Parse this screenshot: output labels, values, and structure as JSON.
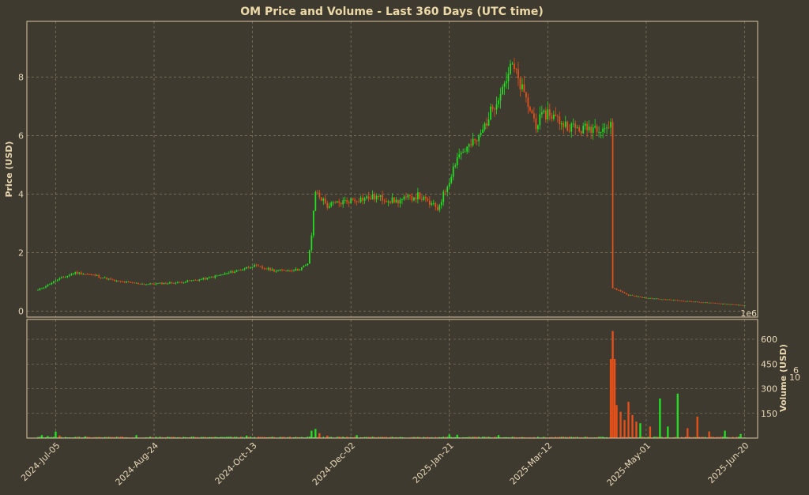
{
  "chart_data": {
    "type": "candlestick",
    "title": "OM Price and Volume - Last 360 Days (UTC time)",
    "price_ylabel": "Price (USD)",
    "volume_ylabel": "Volume (USD)",
    "volume_multiplier_label": "1e6",
    "price_ylim": [
      -0.2,
      9.9
    ],
    "volume_ylim": [
      0,
      720
    ],
    "price_yticks": [
      "0",
      "2",
      "4",
      "6",
      "8"
    ],
    "volume_yticks": [
      "150",
      "300",
      "450",
      "600"
    ],
    "x_tick_labels": [
      "2024-Jul-05",
      "2024-Aug-24",
      "2024-Oct-13",
      "2024-Dec-02",
      "2025-Jan-21",
      "2025-Mar-12",
      "2025-May-01",
      "2025-Jun-20"
    ],
    "x_start": "2024-06-26",
    "days": 360,
    "up_color": "#22e022",
    "down_color": "#e8501a",
    "price_close_anchors": [
      [
        "2024-06-26",
        0.72
      ],
      [
        "2024-07-05",
        1.05
      ],
      [
        "2024-07-15",
        1.32
      ],
      [
        "2024-07-25",
        1.22
      ],
      [
        "2024-08-05",
        1.02
      ],
      [
        "2024-08-20",
        0.92
      ],
      [
        "2024-09-05",
        0.98
      ],
      [
        "2024-09-20",
        1.12
      ],
      [
        "2024-10-05",
        1.38
      ],
      [
        "2024-10-13",
        1.55
      ],
      [
        "2024-10-25",
        1.38
      ],
      [
        "2024-11-05",
        1.42
      ],
      [
        "2024-11-10",
        1.6
      ],
      [
        "2024-11-12",
        2.6
      ],
      [
        "2024-11-14",
        4.1
      ],
      [
        "2024-11-20",
        3.6
      ],
      [
        "2024-12-02",
        3.8
      ],
      [
        "2024-12-15",
        3.9
      ],
      [
        "2024-12-25",
        3.75
      ],
      [
        "2025-01-05",
        3.95
      ],
      [
        "2025-01-15",
        3.5
      ],
      [
        "2025-01-20",
        4.3
      ],
      [
        "2025-01-25",
        5.3
      ],
      [
        "2025-02-05",
        5.9
      ],
      [
        "2025-02-15",
        7.4
      ],
      [
        "2025-02-22",
        8.4
      ],
      [
        "2025-03-01",
        7.2
      ],
      [
        "2025-03-06",
        6.4
      ],
      [
        "2025-03-12",
        6.8
      ],
      [
        "2025-03-20",
        6.4
      ],
      [
        "2025-03-28",
        6.2
      ],
      [
        "2025-04-05",
        6.3
      ],
      [
        "2025-04-13",
        6.3
      ],
      [
        "2025-04-14",
        0.8
      ],
      [
        "2025-04-22",
        0.55
      ],
      [
        "2025-05-01",
        0.45
      ],
      [
        "2025-05-20",
        0.35
      ],
      [
        "2025-06-10",
        0.25
      ],
      [
        "2025-06-20",
        0.2
      ]
    ],
    "volume_bars": [
      [
        "2024-06-28",
        18,
        "up"
      ],
      [
        "2024-07-01",
        12,
        "up"
      ],
      [
        "2024-07-05",
        40,
        "up"
      ],
      [
        "2024-07-07",
        15,
        "down"
      ],
      [
        "2024-07-20",
        10,
        "up"
      ],
      [
        "2024-08-15",
        18,
        "up"
      ],
      [
        "2024-10-10",
        15,
        "up"
      ],
      [
        "2024-11-12",
        45,
        "up"
      ],
      [
        "2024-11-14",
        55,
        "up"
      ],
      [
        "2024-11-16",
        30,
        "down"
      ],
      [
        "2024-11-20",
        15,
        "down"
      ],
      [
        "2024-12-05",
        18,
        "up"
      ],
      [
        "2025-01-21",
        22,
        "up"
      ],
      [
        "2025-01-25",
        20,
        "up"
      ],
      [
        "2025-02-15",
        18,
        "up"
      ],
      [
        "2025-04-13",
        480,
        "down"
      ],
      [
        "2025-04-14",
        650,
        "down"
      ],
      [
        "2025-04-15",
        480,
        "down"
      ],
      [
        "2025-04-16",
        200,
        "down"
      ],
      [
        "2025-04-18",
        160,
        "down"
      ],
      [
        "2025-04-20",
        110,
        "down"
      ],
      [
        "2025-04-22",
        220,
        "down"
      ],
      [
        "2025-04-24",
        140,
        "down"
      ],
      [
        "2025-04-26",
        100,
        "down"
      ],
      [
        "2025-04-28",
        90,
        "up"
      ],
      [
        "2025-05-03",
        70,
        "down"
      ],
      [
        "2025-05-08",
        240,
        "up"
      ],
      [
        "2025-05-12",
        70,
        "up"
      ],
      [
        "2025-05-17",
        270,
        "up"
      ],
      [
        "2025-05-22",
        60,
        "down"
      ],
      [
        "2025-05-27",
        130,
        "down"
      ],
      [
        "2025-06-02",
        40,
        "down"
      ],
      [
        "2025-06-10",
        45,
        "up"
      ],
      [
        "2025-06-18",
        25,
        "up"
      ]
    ]
  }
}
